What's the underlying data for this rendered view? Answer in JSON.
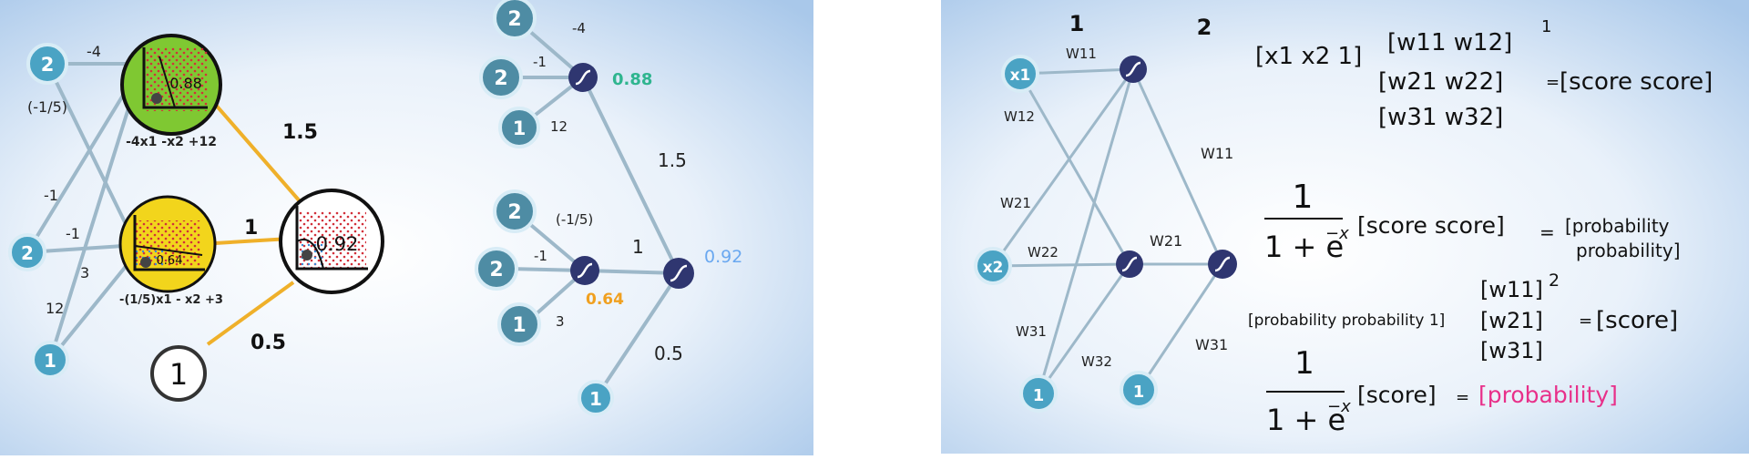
{
  "panel1": {
    "inputs": [
      "2",
      "2",
      "1"
    ],
    "weights_top": [
      "-4",
      "(-1/5)"
    ],
    "weights_mid": [
      "-1",
      "-1",
      "3"
    ],
    "weight_bias_mid": "12",
    "region_top": {
      "value": "0.88",
      "equation": "-4x1 -x2 +12",
      "color": "#7fc832"
    },
    "region_mid": {
      "value": "0.64",
      "equation": "-(1/5)x1 - x2 +3",
      "color": "#f2d51c"
    },
    "region_out": {
      "value": "0.92"
    },
    "edge_weights": [
      "1.5",
      "1",
      "0.5"
    ],
    "bias_out": "1"
  },
  "panel2": {
    "top": {
      "inputs": [
        "2",
        "2",
        "1"
      ],
      "weights": [
        "-4",
        "-1",
        "12"
      ],
      "output": "0.88"
    },
    "mid": {
      "inputs": [
        "2",
        "2",
        "1"
      ],
      "weights": [
        "(-1/5)",
        "-1",
        "3"
      ],
      "output": "0.64"
    },
    "out": {
      "weights": [
        "1.5",
        "1",
        "0.5"
      ],
      "output": "0.92",
      "bias": "1"
    },
    "output_colors": {
      "top": "#2fb58f",
      "mid": "#f0a020",
      "out": "#6aa8f0"
    }
  },
  "panel3": {
    "layer_labels": [
      "1",
      "2"
    ],
    "inputs": [
      "x1",
      "x2",
      "1",
      "1"
    ],
    "weights_l1": [
      "W11",
      "W12",
      "W21",
      "W22",
      "W31",
      "W32"
    ],
    "weights_l2": [
      "W11",
      "W21",
      "W31"
    ],
    "eq1": {
      "vector": "[x1 x2 1]",
      "row1": "[w11 w12]",
      "row2": "[w21 w22]",
      "row3": "[w31 w32]",
      "superscript": "1",
      "equals": "=",
      "result": "[score score]"
    },
    "eq2": {
      "numerator": "1",
      "denominator": "1 + e",
      "exponent": "−x",
      "arg": "[score score]",
      "equals": "=",
      "result_line1": "[probability",
      "result_line2": "probability]"
    },
    "eq3": {
      "vector": "[probability probability 1]",
      "row1": "[w11]",
      "row2": "[w21]",
      "row3": "[w31]",
      "superscript": "2",
      "equals": "=",
      "result": "[score]"
    },
    "eq4": {
      "numerator": "1",
      "denominator": "1 + e",
      "exponent": "−x",
      "arg": "[score]",
      "equals": "=",
      "result": "[probability]",
      "result_color": "#e8308a"
    }
  }
}
